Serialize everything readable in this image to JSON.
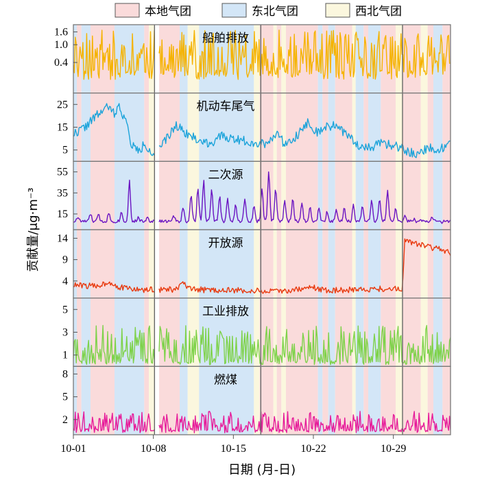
{
  "chart_data": {
    "type": "line",
    "ylabel": "贡献量/μg·m⁻³",
    "xlabel": "日期 (月-日)",
    "x_ticks": [
      "10-01",
      "10-08",
      "10-15",
      "10-22",
      "10-29"
    ],
    "xlim_days": [
      0,
      33
    ],
    "divider_days": [
      7.1,
      16.4,
      28.8
    ],
    "gap_days": [
      7.1,
      7.5
    ],
    "legend": [
      {
        "name": "本地气团",
        "color": "#FADBDB"
      },
      {
        "name": "东北气团",
        "color": "#D3E6F7"
      },
      {
        "name": "西北气团",
        "color": "#FBF7DE"
      }
    ],
    "air_mass_periods": [
      {
        "from": 0.0,
        "to": 0.3,
        "mass": "东北气团"
      },
      {
        "from": 0.3,
        "to": 0.7,
        "mass": "本地气团"
      },
      {
        "from": 0.7,
        "to": 1.5,
        "mass": "东北气团"
      },
      {
        "from": 1.5,
        "to": 3.6,
        "mass": "本地气团"
      },
      {
        "from": 3.6,
        "to": 6.2,
        "mass": "东北气团"
      },
      {
        "from": 6.2,
        "to": 6.6,
        "mass": "本地气团"
      },
      {
        "from": 6.6,
        "to": 7.1,
        "mass": "西北气团"
      },
      {
        "from": 7.5,
        "to": 9.3,
        "mass": "本地气团"
      },
      {
        "from": 9.3,
        "to": 10.0,
        "mass": "东北气团"
      },
      {
        "from": 10.0,
        "to": 11.0,
        "mass": "西北气团"
      },
      {
        "from": 11.0,
        "to": 15.8,
        "mass": "东北气团"
      },
      {
        "from": 15.8,
        "to": 16.3,
        "mass": "西北气团"
      },
      {
        "from": 16.3,
        "to": 17.5,
        "mass": "本地气团"
      },
      {
        "from": 17.5,
        "to": 17.8,
        "mass": "西北气团"
      },
      {
        "from": 17.8,
        "to": 18.2,
        "mass": "本地气团"
      },
      {
        "from": 18.2,
        "to": 18.6,
        "mass": "西北气团"
      },
      {
        "from": 18.6,
        "to": 21.4,
        "mass": "本地气团"
      },
      {
        "from": 21.4,
        "to": 21.8,
        "mass": "东北气团"
      },
      {
        "from": 21.8,
        "to": 22.3,
        "mass": "本地气团"
      },
      {
        "from": 22.3,
        "to": 22.9,
        "mass": "东北气团"
      },
      {
        "from": 22.9,
        "to": 24.4,
        "mass": "本地气团"
      },
      {
        "from": 24.4,
        "to": 24.7,
        "mass": "西北气团"
      },
      {
        "from": 24.7,
        "to": 25.4,
        "mass": "东北气团"
      },
      {
        "from": 25.4,
        "to": 25.8,
        "mass": "本地气团"
      },
      {
        "from": 25.8,
        "to": 26.9,
        "mass": "东北气团"
      },
      {
        "from": 26.9,
        "to": 28.2,
        "mass": "本地气团"
      },
      {
        "from": 28.2,
        "to": 28.8,
        "mass": "西北气团"
      },
      {
        "from": 28.8,
        "to": 30.4,
        "mass": "本地气团"
      },
      {
        "from": 30.4,
        "to": 31.0,
        "mass": "西北气团"
      },
      {
        "from": 31.0,
        "to": 31.5,
        "mass": "本地气团"
      },
      {
        "from": 31.5,
        "to": 32.3,
        "mass": "东北气团"
      },
      {
        "from": 32.3,
        "to": 33.0,
        "mass": "本地气团"
      }
    ],
    "panels": [
      {
        "title": "船舶排放",
        "color": "#F5B301",
        "scale": "sqrt",
        "ylim": [
          0,
          2.0
        ],
        "y_ticks": [
          0.4,
          1.0,
          1.6
        ],
        "y_tick_labels": [
          "0.4",
          "1.0",
          "1.6"
        ],
        "style": "spiky",
        "base": 0.0,
        "profile": [
          [
            0,
            0.15
          ],
          [
            33,
            0.15
          ]
        ],
        "spike_prob": 0.75,
        "spike_max": 1.55,
        "seed": 11
      },
      {
        "title": "机动车尾气",
        "color": "#1BA3DA",
        "scale": "linear",
        "ylim": [
          0,
          30
        ],
        "y_ticks": [
          5,
          15,
          25
        ],
        "y_tick_labels": [
          "5",
          "15",
          "25"
        ],
        "style": "smooth",
        "profile": [
          [
            0,
            12
          ],
          [
            1,
            15
          ],
          [
            2,
            20
          ],
          [
            3,
            24
          ],
          [
            3.6,
            21
          ],
          [
            4,
            24
          ],
          [
            4.6,
            18
          ],
          [
            5,
            8
          ],
          [
            5.8,
            4
          ],
          [
            6.2,
            8
          ],
          [
            7.0,
            3
          ],
          [
            7.5,
            5
          ],
          [
            9,
            16
          ],
          [
            10,
            12
          ],
          [
            11,
            9
          ],
          [
            12,
            8
          ],
          [
            13,
            11
          ],
          [
            14,
            10
          ],
          [
            15,
            9
          ],
          [
            16,
            8
          ],
          [
            17,
            8
          ],
          [
            17.8,
            13
          ],
          [
            18.4,
            8
          ],
          [
            19.5,
            11
          ],
          [
            20.5,
            17
          ],
          [
            21.5,
            12
          ],
          [
            22,
            15
          ],
          [
            23,
            16
          ],
          [
            24,
            11
          ],
          [
            25,
            7
          ],
          [
            26,
            6
          ],
          [
            27,
            8
          ],
          [
            28,
            7
          ],
          [
            29,
            5
          ],
          [
            30,
            3
          ],
          [
            31,
            6
          ],
          [
            32,
            5
          ],
          [
            33,
            8
          ]
        ],
        "noise": 2.0,
        "seed": 22
      },
      {
        "title": "二次源",
        "color": "#6A14C2",
        "scale": "linear",
        "ylim": [
          0,
          65
        ],
        "y_ticks": [
          15,
          35,
          55
        ],
        "y_tick_labels": [
          "15",
          "35",
          "55"
        ],
        "style": "peaky",
        "base": 8,
        "profile": [
          [
            0,
            8
          ],
          [
            33,
            8
          ]
        ],
        "peaks": [
          [
            0.4,
            12
          ],
          [
            1.5,
            15
          ],
          [
            2.2,
            14
          ],
          [
            3.1,
            16
          ],
          [
            4.2,
            17
          ],
          [
            4.9,
            47
          ],
          [
            5.7,
            12
          ],
          [
            6.5,
            13
          ],
          [
            8.8,
            13
          ],
          [
            9.6,
            22
          ],
          [
            10.3,
            32
          ],
          [
            10.9,
            40
          ],
          [
            11.4,
            48
          ],
          [
            12.1,
            38
          ],
          [
            12.8,
            32
          ],
          [
            13.5,
            30
          ],
          [
            14.2,
            25
          ],
          [
            15.0,
            30
          ],
          [
            15.8,
            22
          ],
          [
            16.5,
            40
          ],
          [
            17.1,
            56
          ],
          [
            17.7,
            40
          ],
          [
            18.5,
            28
          ],
          [
            19.2,
            30
          ],
          [
            20.0,
            25
          ],
          [
            20.7,
            22
          ],
          [
            21.5,
            22
          ],
          [
            22.2,
            18
          ],
          [
            23.0,
            20
          ],
          [
            23.7,
            22
          ],
          [
            24.5,
            24
          ],
          [
            25.3,
            22
          ],
          [
            26.1,
            28
          ],
          [
            26.8,
            30
          ],
          [
            27.5,
            38
          ],
          [
            28.2,
            20
          ],
          [
            29.0,
            13
          ],
          [
            29.8,
            10
          ],
          [
            30.6,
            9
          ],
          [
            31.4,
            12
          ],
          [
            32.2,
            7
          ]
        ],
        "noise": 1.5,
        "seed": 33
      },
      {
        "title": "开放源",
        "color": "#E8390E",
        "scale": "linear",
        "ylim": [
          0,
          16
        ],
        "y_ticks": [
          4,
          9,
          14
        ],
        "y_tick_labels": [
          "4",
          "9",
          "14"
        ],
        "style": "smooth",
        "profile": [
          [
            0,
            3
          ],
          [
            2,
            2.8
          ],
          [
            3.2,
            3.8
          ],
          [
            4,
            2.5
          ],
          [
            6.2,
            1.8
          ],
          [
            7,
            2.0
          ],
          [
            9,
            2.0
          ],
          [
            9.6,
            3.5
          ],
          [
            10.2,
            2.0
          ],
          [
            14,
            1.8
          ],
          [
            18,
            1.5
          ],
          [
            21,
            2.5
          ],
          [
            22,
            1.8
          ],
          [
            25,
            2.0
          ],
          [
            28,
            2.2
          ],
          [
            28.8,
            2.0
          ],
          [
            29.0,
            14
          ],
          [
            29.6,
            13
          ],
          [
            31,
            12
          ],
          [
            32,
            11.5
          ],
          [
            33,
            10.5
          ]
        ],
        "noise": 0.7,
        "seed": 44
      },
      {
        "title": "工业排放",
        "color": "#7ED24A",
        "scale": "linear",
        "ylim": [
          0,
          6
        ],
        "y_ticks": [
          1,
          3,
          5
        ],
        "y_tick_labels": [
          "1",
          "3",
          "5"
        ],
        "style": "spiky",
        "base": 0.3,
        "profile": [
          [
            0,
            0.3
          ],
          [
            33,
            0.3
          ]
        ],
        "spike_prob": 0.8,
        "spike_max": 3.3,
        "seed": 55
      },
      {
        "title": "燃煤",
        "color": "#E61C9A",
        "scale": "linear",
        "ylim": [
          0,
          9
        ],
        "y_ticks": [
          2,
          5,
          8
        ],
        "y_tick_labels": [
          "2",
          "5",
          "8"
        ],
        "style": "spiky",
        "base": 0.4,
        "profile": [
          [
            0,
            0.5
          ],
          [
            33,
            0.5
          ]
        ],
        "spike_prob": 0.75,
        "spike_max": 2.6,
        "seed": 66
      }
    ]
  }
}
